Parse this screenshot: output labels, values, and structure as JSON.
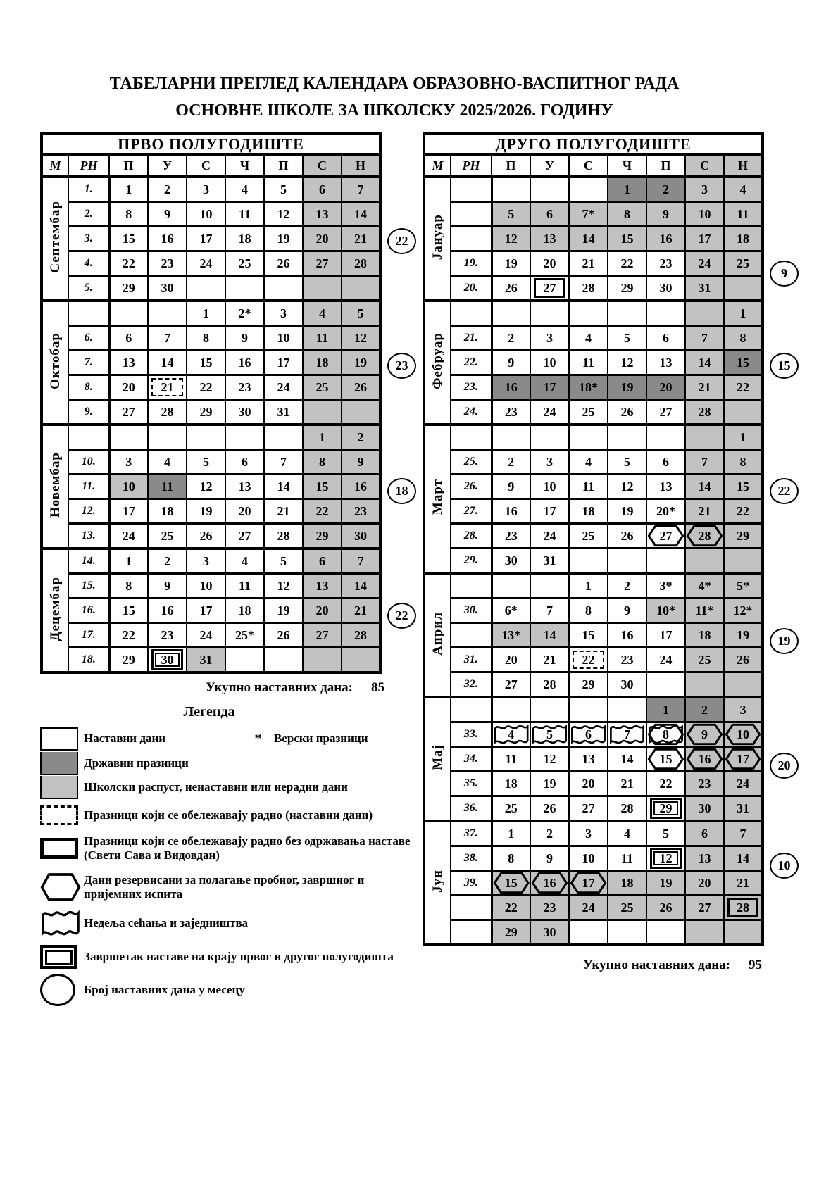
{
  "title": {
    "line1": "ТАБЕЛАРНИ ПРЕГЛЕД КАЛЕНДАРА ОБРАЗОВНО-ВАСПИТНОГ РАДА",
    "line2": "ОСНОВНЕ ШКОЛЕ ЗА ШКОЛСКУ 2025/2026. ГОДИНУ"
  },
  "colors": {
    "school_day": "#ffffff",
    "state_holiday": "#8a8a8a",
    "break_day": "#c2c2c2",
    "border": "#000000"
  },
  "semesters": [
    {
      "title": "ПРВО ПОЛУГОДИШТЕ",
      "headers": [
        "М",
        "РН",
        "П",
        "У",
        "С",
        "Ч",
        "П",
        "С",
        "Н"
      ],
      "total_label": "Укупно наставних дана:",
      "total_value": "85",
      "months": [
        {
          "name": "Септембар",
          "days_circle": "22",
          "circle_row": 2,
          "weeks": [
            {
              "rn": "1.",
              "days": [
                "1|w",
                "2|w",
                "3|w",
                "4|w",
                "5|w",
                "6|g",
                "7|g"
              ]
            },
            {
              "rn": "2.",
              "days": [
                "8|w",
                "9|w",
                "10|w",
                "11|w",
                "12|w",
                "13|g",
                "14|g"
              ]
            },
            {
              "rn": "3.",
              "days": [
                "15|w",
                "16|w",
                "17|w",
                "18|w",
                "19|w",
                "20|g",
                "21|g"
              ]
            },
            {
              "rn": "4.",
              "days": [
                "22|w",
                "23|w",
                "24|w",
                "25|w",
                "26|w",
                "27|g",
                "28|g"
              ]
            },
            {
              "rn": "5.",
              "days": [
                "29|w",
                "30|w",
                "|w",
                "|w",
                "|w",
                "|g",
                "|g"
              ]
            }
          ]
        },
        {
          "name": "Октобар",
          "days_circle": "23",
          "circle_row": 2,
          "weeks": [
            {
              "rn": "",
              "days": [
                "|w",
                "|w",
                "1|w",
                "2*|w",
                "3|w",
                "4|g",
                "5|g"
              ]
            },
            {
              "rn": "6.",
              "days": [
                "6|w",
                "7|w",
                "8|w",
                "9|w",
                "10|w",
                "11|g",
                "12|g"
              ]
            },
            {
              "rn": "7.",
              "days": [
                "13|w",
                "14|w",
                "15|w",
                "16|w",
                "17|w",
                "18|g",
                "19|g"
              ]
            },
            {
              "rn": "8.",
              "days": [
                "20|w",
                "21|w|D",
                "22|w",
                "23|w",
                "24|w",
                "25|g",
                "26|g"
              ]
            },
            {
              "rn": "9.",
              "days": [
                "27|w",
                "28|w",
                "29|w",
                "30|w",
                "31|w",
                "|g",
                "|g"
              ]
            }
          ]
        },
        {
          "name": "Новембар",
          "days_circle": "18",
          "circle_row": 2,
          "weeks": [
            {
              "rn": "",
              "days": [
                "|w",
                "|w",
                "|w",
                "|w",
                "|w",
                "1|g",
                "2|g"
              ]
            },
            {
              "rn": "10.",
              "days": [
                "3|w",
                "4|w",
                "5|w",
                "6|w",
                "7|w",
                "8|g",
                "9|g"
              ]
            },
            {
              "rn": "11.",
              "days": [
                "10|g",
                "11|d",
                "12|w",
                "13|w",
                "14|w",
                "15|g",
                "16|g"
              ]
            },
            {
              "rn": "12.",
              "days": [
                "17|w",
                "18|w",
                "19|w",
                "20|w",
                "21|w",
                "22|g",
                "23|g"
              ]
            },
            {
              "rn": "13.",
              "days": [
                "24|w",
                "25|w",
                "26|w",
                "27|w",
                "28|w",
                "29|g",
                "30|g"
              ]
            }
          ]
        },
        {
          "name": "Децембар",
          "days_circle": "22",
          "circle_row": 2,
          "weeks": [
            {
              "rn": "14.",
              "days": [
                "1|w",
                "2|w",
                "3|w",
                "4|w",
                "5|w",
                "6|g",
                "7|g"
              ]
            },
            {
              "rn": "15.",
              "days": [
                "8|w",
                "9|w",
                "10|w",
                "11|w",
                "12|w",
                "13|g",
                "14|g"
              ]
            },
            {
              "rn": "16.",
              "days": [
                "15|w",
                "16|w",
                "17|w",
                "18|w",
                "19|w",
                "20|g",
                "21|g"
              ]
            },
            {
              "rn": "17.",
              "days": [
                "22|w",
                "23|w",
                "24|w",
                "25*|w",
                "26|w",
                "27|g",
                "28|g"
              ]
            },
            {
              "rn": "18.",
              "days": [
                "29|w",
                "30|w|X",
                "31|g",
                "|w",
                "|w",
                "|g",
                "|g"
              ]
            }
          ]
        }
      ]
    },
    {
      "title": "ДРУГО ПОЛУГОДИШТЕ",
      "headers": [
        "М",
        "РН",
        "П",
        "У",
        "С",
        "Ч",
        "П",
        "С",
        "Н"
      ],
      "total_label": "Укупно наставних дана:",
      "total_value": "95",
      "months": [
        {
          "name": "Јануар",
          "days_circle": "9",
          "circle_row": 3.3,
          "weeks": [
            {
              "rn": "",
              "days": [
                "|w",
                "|w",
                "|w",
                "1|d",
                "2|d",
                "3|g",
                "4|g"
              ]
            },
            {
              "rn": "",
              "days": [
                "5|g",
                "6|g",
                "7*|g",
                "8|g",
                "9|g",
                "10|g",
                "11|g"
              ]
            },
            {
              "rn": "",
              "days": [
                "12|g",
                "13|g",
                "14|g",
                "15|g",
                "16|g",
                "17|g",
                "18|g"
              ]
            },
            {
              "rn": "19.",
              "days": [
                "19|w",
                "20|w",
                "21|w",
                "22|w",
                "23|w",
                "24|g",
                "25|g"
              ]
            },
            {
              "rn": "20.",
              "days": [
                "26|w",
                "27|w|T",
                "28|w",
                "29|w",
                "30|w",
                "31|g",
                "|g"
              ]
            }
          ]
        },
        {
          "name": "Фебруар",
          "days_circle": "15",
          "circle_row": 2,
          "weeks": [
            {
              "rn": "",
              "days": [
                "|w",
                "|w",
                "|w",
                "|w",
                "|w",
                "|g",
                "1|g"
              ]
            },
            {
              "rn": "21.",
              "days": [
                "2|w",
                "3|w",
                "4|w",
                "5|w",
                "6|w",
                "7|g",
                "8|g"
              ]
            },
            {
              "rn": "22.",
              "days": [
                "9|w",
                "10|w",
                "11|w",
                "12|w",
                "13|w",
                "14|g",
                "15|d"
              ]
            },
            {
              "rn": "23.",
              "days": [
                "16|d",
                "17|d",
                "18*|d",
                "19|d",
                "20|d",
                "21|g",
                "22|g"
              ]
            },
            {
              "rn": "24.",
              "days": [
                "23|w",
                "24|w",
                "25|w",
                "26|w",
                "27|w",
                "28|g",
                "|g"
              ]
            }
          ]
        },
        {
          "name": "Март",
          "days_circle": "22",
          "circle_row": 2,
          "weeks": [
            {
              "rn": "",
              "days": [
                "|w",
                "|w",
                "|w",
                "|w",
                "|w",
                "|g",
                "1|g"
              ]
            },
            {
              "rn": "25.",
              "days": [
                "2|w",
                "3|w",
                "4|w",
                "5|w",
                "6|w",
                "7|g",
                "8|g"
              ]
            },
            {
              "rn": "26.",
              "days": [
                "9|w",
                "10|w",
                "11|w",
                "12|w",
                "13|w",
                "14|g",
                "15|g"
              ]
            },
            {
              "rn": "27.",
              "days": [
                "16|w",
                "17|w",
                "18|w",
                "19|w",
                "20*|w",
                "21|g",
                "22|g"
              ]
            },
            {
              "rn": "28.",
              "days": [
                "23|w",
                "24|w",
                "25|w",
                "26|w",
                "27|w|H",
                "28|g|H",
                "29|g"
              ]
            },
            {
              "rn": "29.",
              "days": [
                "30|w",
                "31|w",
                "|w",
                "|w",
                "|w",
                "|g",
                "|g"
              ]
            }
          ]
        },
        {
          "name": "Април",
          "days_circle": "19",
          "circle_row": 2,
          "weeks": [
            {
              "rn": "",
              "days": [
                "|w",
                "|w",
                "1|w",
                "2|w",
                "3*|w",
                "4*|g",
                "5*|g"
              ]
            },
            {
              "rn": "30.",
              "days": [
                "6*|w",
                "7|w",
                "8|w",
                "9|w",
                "10*|g",
                "11*|g",
                "12*|g"
              ]
            },
            {
              "rn": "",
              "days": [
                "13*|g",
                "14|g",
                "15|w",
                "16|w",
                "17|w",
                "18|g",
                "19|g"
              ]
            },
            {
              "rn": "31.",
              "days": [
                "20|w",
                "21|w",
                "22|w|D",
                "23|w",
                "24|w",
                "25|g",
                "26|g"
              ]
            },
            {
              "rn": "32.",
              "days": [
                "27|w",
                "28|w",
                "29|w",
                "30|w",
                "|w",
                "|g",
                "|g"
              ]
            }
          ]
        },
        {
          "name": "Мај",
          "days_circle": "20",
          "circle_row": 2,
          "weeks": [
            {
              "rn": "",
              "days": [
                "|w",
                "|w",
                "|w",
                "|w",
                "1|d",
                "2|d",
                "3|g"
              ]
            },
            {
              "rn": "33.",
              "days": [
                "4|w|W",
                "5|w|W",
                "6|w|W",
                "7|w|W",
                "8|w|B",
                "9|g|H",
                "10|g|H"
              ]
            },
            {
              "rn": "34.",
              "days": [
                "11|w",
                "12|w",
                "13|w",
                "14|w",
                "15|w|H",
                "16|g|H",
                "17|g|H"
              ]
            },
            {
              "rn": "35.",
              "days": [
                "18|w",
                "19|w",
                "20|w",
                "21|w",
                "22|w",
                "23|g",
                "24|g"
              ]
            },
            {
              "rn": "36.",
              "days": [
                "25|w",
                "26|w",
                "27|w",
                "28|w",
                "29|w|X",
                "30|g",
                "31|g"
              ]
            }
          ]
        },
        {
          "name": "Јун",
          "days_circle": "10",
          "circle_row": 1,
          "weeks": [
            {
              "rn": "37.",
              "days": [
                "1|w",
                "2|w",
                "3|w",
                "4|w",
                "5|w",
                "6|g",
                "7|g"
              ]
            },
            {
              "rn": "38.",
              "days": [
                "8|w",
                "9|w",
                "10|w",
                "11|w",
                "12|w|X",
                "13|g",
                "14|g"
              ]
            },
            {
              "rn": "39.",
              "days": [
                "15|g|H",
                "16|g|H",
                "17|g|H",
                "18|g",
                "19|g",
                "20|g",
                "21|g"
              ]
            },
            {
              "rn": "",
              "days": [
                "22|g",
                "23|g",
                "24|g",
                "25|g",
                "26|g",
                "27|g",
                "28|g|T"
              ]
            },
            {
              "rn": "",
              "days": [
                "29|g",
                "30|g",
                "|w",
                "|w",
                "|w",
                "|g",
                "|g"
              ]
            }
          ]
        }
      ]
    }
  ],
  "legend": {
    "heading": "Легенда",
    "star": "*",
    "star_label": "Верски празници",
    "items": [
      {
        "swatch": "white",
        "label": "Наставни дани"
      },
      {
        "swatch": "dark",
        "label": "Државни празници"
      },
      {
        "swatch": "gray",
        "label": "Школски распуст, ненаставни или нерадни дани"
      },
      {
        "swatch": "dashed",
        "label": "Празници који се обележавају радно (наставни дани)"
      },
      {
        "swatch": "thick",
        "label": "Празници који се обележавају радно без одржавања наставе (Свети Сава и Видовдан)"
      },
      {
        "swatch": "hexagon",
        "label": "Дани резервисани за полагање пробног, завршног и пријемних испита"
      },
      {
        "swatch": "wavy",
        "label": "Недеља сећања и заједништва"
      },
      {
        "swatch": "double",
        "label": "Завршетак наставе на крају првог и другог полугодишта"
      },
      {
        "swatch": "circleS",
        "label": "Број наставних дана у месецу"
      }
    ]
  }
}
